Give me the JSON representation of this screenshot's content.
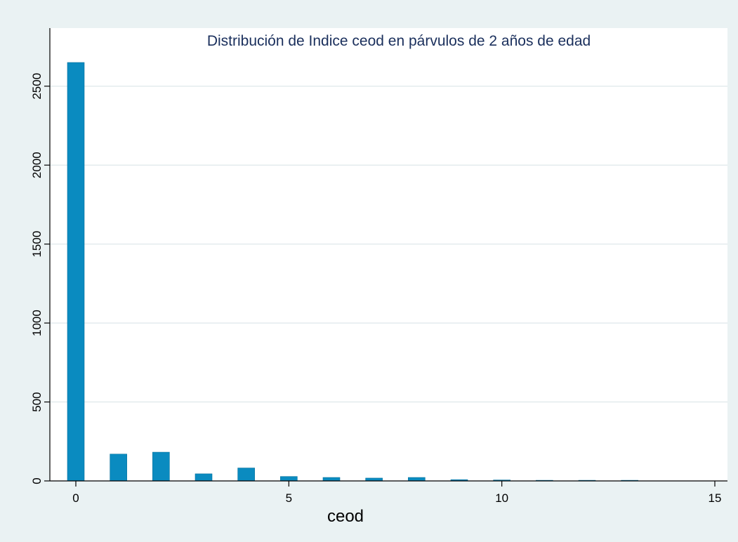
{
  "chart_data": {
    "type": "bar",
    "title": "Distribución de Indice ceod en párvulos de 2 años de edad",
    "xlabel": "ceod",
    "ylabel": "",
    "x": [
      0,
      1,
      2,
      3,
      4,
      5,
      6,
      7,
      8,
      9,
      10,
      11,
      12,
      13
    ],
    "values": [
      2650,
      170,
      182,
      45,
      82,
      28,
      22,
      18,
      22,
      8,
      6,
      4,
      4,
      4
    ],
    "xlim": [
      -0.4,
      15.3
    ],
    "ylim": [
      0,
      2650
    ],
    "xticks": [
      0,
      5,
      10,
      15
    ],
    "yticks": [
      0,
      500,
      1000,
      1500,
      2000,
      2500
    ],
    "grid": true,
    "legend": "none",
    "colors": {
      "background": "#eaf2f3",
      "plot_background": "#ffffff",
      "bar": "#0a8bc0",
      "bar_edge": "#08719c",
      "gridline": "#e3ebee",
      "title": "#1a2f5c"
    }
  }
}
